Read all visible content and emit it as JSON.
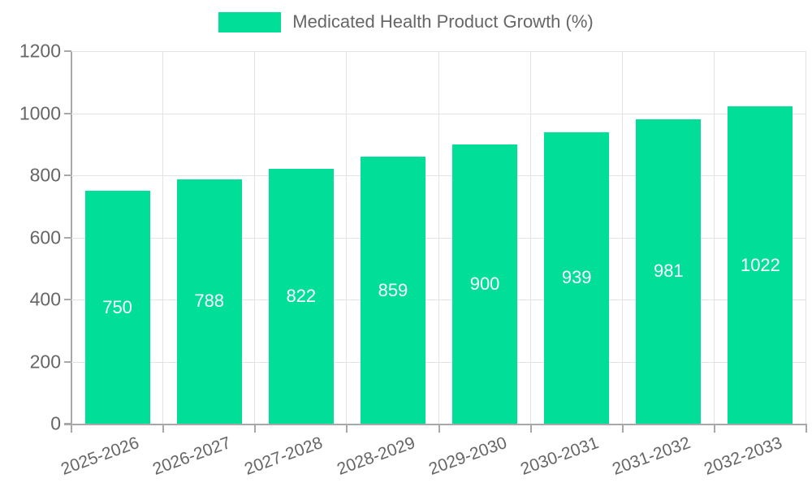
{
  "legend": {
    "swatch_color": "#01de97",
    "label": "Medicated Health Product Growth (%)"
  },
  "chart_data": {
    "type": "bar",
    "title": "",
    "xlabel": "",
    "ylabel": "",
    "categories": [
      "2025-2026",
      "2026-2027",
      "2027-2028",
      "2028-2029",
      "2029-2030",
      "2030-2031",
      "2031-2032",
      "2032-2033"
    ],
    "series": [
      {
        "name": "Medicated Health Product Growth (%)",
        "values": [
          750,
          788,
          822,
          859,
          900,
          939,
          981,
          1022
        ]
      }
    ],
    "value_labels": [
      "750",
      "788",
      "822",
      "859",
      "900",
      "939",
      "981",
      "1022"
    ],
    "ylim": [
      0,
      1200
    ],
    "yticks": [
      0,
      200,
      400,
      600,
      800,
      1000,
      1200
    ],
    "grid": true,
    "legend_position": "top",
    "bar_color": "#01de97",
    "value_label_color": "#ffffff",
    "axis_color": "#a8a8a8",
    "gridline_color": "#e3e3e3",
    "tick_label_color": "#666666"
  }
}
